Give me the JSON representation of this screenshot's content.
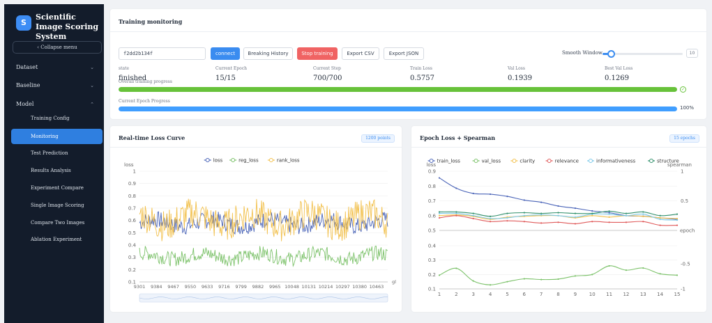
{
  "sidebar": {
    "logo_letter": "S",
    "title": "Scientific Image Scoring System",
    "collapse_label": "Collapse menu",
    "collapse_icon": "chevron-left-icon",
    "nav": [
      {
        "label": "Dataset",
        "expanded": false
      },
      {
        "label": "Baseline",
        "expanded": false
      },
      {
        "label": "Model",
        "expanded": true
      }
    ],
    "model_items": [
      {
        "label": "Training Config",
        "active": false
      },
      {
        "label": "Monitoring",
        "active": true
      },
      {
        "label": "Test Prediction",
        "active": false
      },
      {
        "label": "Results Analysis",
        "active": false
      },
      {
        "label": "Experiment Compare",
        "active": false
      },
      {
        "label": "Single Image Scoring",
        "active": false
      },
      {
        "label": "Compare Two Images",
        "active": false
      },
      {
        "label": "Ablation Experiment",
        "active": false
      }
    ]
  },
  "monitoring": {
    "title": "Training monitoring",
    "run_id": "f2dd2b134f",
    "buttons": {
      "connect": "connect",
      "history": "Breaking History",
      "stop": "Stop training",
      "export_csv": "Export CSV",
      "export_json": "Export JSON"
    },
    "smooth": {
      "label": "Smooth Window",
      "value": "10",
      "fraction": 0.1
    },
    "stats": [
      {
        "label": "state",
        "value": "finished"
      },
      {
        "label": "Current Epoch",
        "value": "15/15"
      },
      {
        "label": "Current Step",
        "value": "700/700"
      },
      {
        "label": "Train Loss",
        "value": "0.5757"
      },
      {
        "label": "Val Loss",
        "value": "0.1939"
      },
      {
        "label": "Best Val Loss",
        "value": "0.1269"
      }
    ],
    "overall": {
      "label": "Overall training progress",
      "percent": 100,
      "color": "#67c23a"
    },
    "epoch_progress": {
      "label": "Current Epoch Progress",
      "percent": 100,
      "text": "100%",
      "color": "#409eff"
    }
  },
  "loss_panel": {
    "title": "Real-time Loss Curve",
    "badge": "1200 points"
  },
  "epoch_panel": {
    "title": "Epoch Loss + Spearman",
    "badge": "15 epochs"
  },
  "chart_data": [
    {
      "type": "line",
      "ylabel": "loss",
      "xlabel": "gl",
      "legend_position": "top",
      "ylim": [
        0.1,
        1.0
      ],
      "yticks": [
        "1",
        "0.9",
        "0.8",
        "0.7",
        "0.6",
        "0.5",
        "0.4",
        "0.3",
        "0.2",
        "0.1"
      ],
      "xlim": [
        9301,
        10518
      ],
      "xticks": [
        "9301",
        "9384",
        "9467",
        "9550",
        "9633",
        "9716",
        "9799",
        "9882",
        "9965",
        "10048",
        "10131",
        "10214",
        "10297",
        "10380",
        "10463"
      ],
      "series": [
        {
          "name": "loss",
          "color": "#4a64b8",
          "mean": 0.58,
          "amp": 0.07
        },
        {
          "name": "reg_loss",
          "color": "#7cc26a",
          "mean": 0.31,
          "amp": 0.06
        },
        {
          "name": "rank_loss",
          "color": "#f2c14e",
          "mean": 0.61,
          "amp": 0.13
        }
      ]
    },
    {
      "type": "line",
      "ylabel": "loss",
      "y2label": "spearman",
      "xlabel": "epoch",
      "legend_position": "top",
      "x": [
        1,
        2,
        3,
        4,
        5,
        6,
        7,
        8,
        9,
        10,
        11,
        12,
        13,
        14,
        15
      ],
      "upper_ylim": [
        0.5,
        0.9
      ],
      "upper_yticks": [
        "0.9",
        "0.8",
        "0.7",
        "0.6",
        "0.5"
      ],
      "upper_y2ticks": [
        "1",
        "0.5"
      ],
      "lower_ylim": [
        0.1,
        0.4
      ],
      "lower_yticks": [
        "0.4",
        "0.3",
        "0.2",
        "0.1"
      ],
      "lower_y2ticks": [
        "-0.5",
        "-1"
      ],
      "series": [
        {
          "name": "train_loss",
          "color": "#4a64b8",
          "panel": "upper",
          "values": [
            0.855,
            0.785,
            0.75,
            0.745,
            0.73,
            0.705,
            0.69,
            0.665,
            0.65,
            0.632,
            0.62,
            0.6,
            0.596,
            0.585,
            0.575
          ]
        },
        {
          "name": "val_loss",
          "color": "#7cc26a",
          "panel": "lower",
          "values": [
            0.195,
            0.243,
            0.155,
            0.128,
            0.15,
            0.17,
            0.165,
            0.168,
            0.19,
            0.2,
            0.26,
            0.23,
            0.245,
            0.205,
            0.195
          ]
        },
        {
          "name": "clarity",
          "color": "#f2c14e",
          "panel": "upper",
          "values": [
            0.6,
            0.605,
            0.595,
            0.575,
            0.59,
            0.595,
            0.6,
            0.6,
            0.585,
            0.6,
            0.59,
            0.6,
            0.595,
            0.585,
            0.58
          ]
        },
        {
          "name": "relevance",
          "color": "#e05a5a",
          "panel": "upper",
          "values": [
            0.585,
            0.6,
            0.58,
            0.56,
            0.565,
            0.56,
            0.55,
            0.555,
            0.545,
            0.56,
            0.555,
            0.555,
            0.56,
            0.535,
            0.535
          ]
        },
        {
          "name": "informativeness",
          "color": "#7cc9e8",
          "panel": "upper",
          "values": [
            0.615,
            0.615,
            0.6,
            0.58,
            0.585,
            0.6,
            0.605,
            0.6,
            0.59,
            0.61,
            0.61,
            0.6,
            0.61,
            0.575,
            0.57
          ]
        },
        {
          "name": "structure",
          "color": "#2f8f6a",
          "panel": "upper",
          "values": [
            0.625,
            0.625,
            0.615,
            0.595,
            0.615,
            0.62,
            0.615,
            0.62,
            0.615,
            0.615,
            0.63,
            0.615,
            0.625,
            0.6,
            0.61
          ]
        }
      ]
    }
  ]
}
